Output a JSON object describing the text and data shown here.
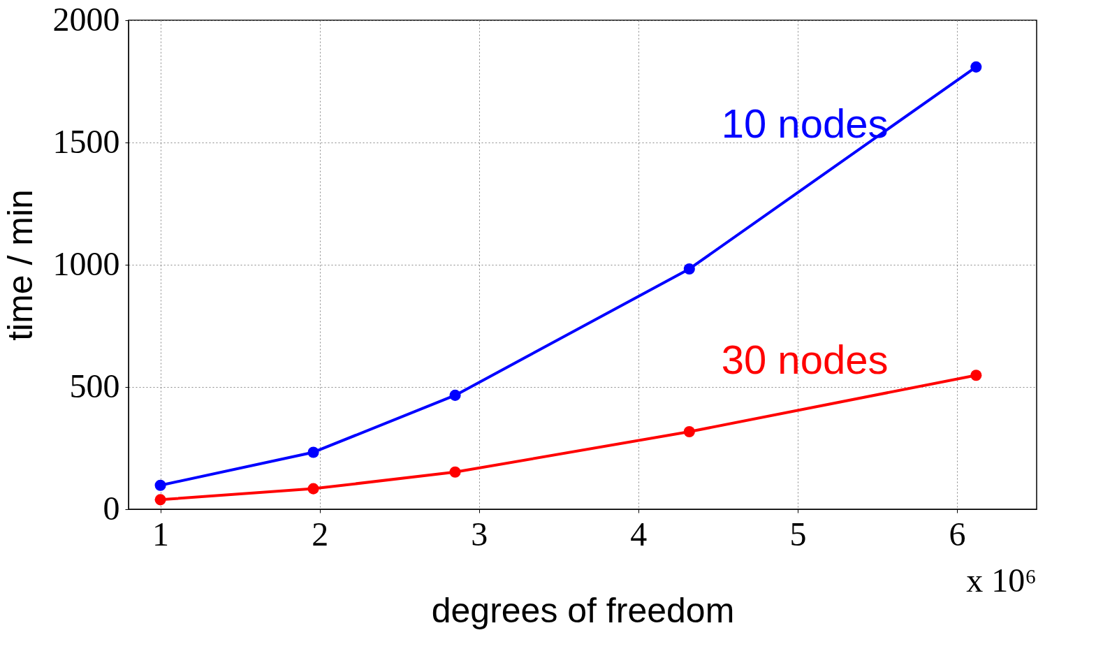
{
  "chart_data": {
    "type": "line",
    "xlabel": "degrees of freedom",
    "ylabel": "time / min",
    "xlim": [
      0.8,
      6.5
    ],
    "xticks": [
      1,
      2,
      3,
      4,
      5,
      6
    ],
    "ylim": [
      0,
      2000
    ],
    "yticks": [
      0,
      500,
      1000,
      1500,
      2000
    ],
    "grid": true,
    "marker": "circle",
    "line_style": "solid",
    "x": [
      1,
      1.96,
      2.85,
      4.32,
      6.12
    ],
    "series": [
      {
        "name": "10 nodes",
        "color": "#0000ff",
        "values": [
          98,
          233,
          466,
          983,
          1809
        ]
      },
      {
        "name": "30 nodes",
        "color": "#ff0000",
        "values": [
          39,
          84,
          152,
          317,
          548
        ]
      }
    ],
    "annotations": [
      "x 10⁶"
    ]
  }
}
